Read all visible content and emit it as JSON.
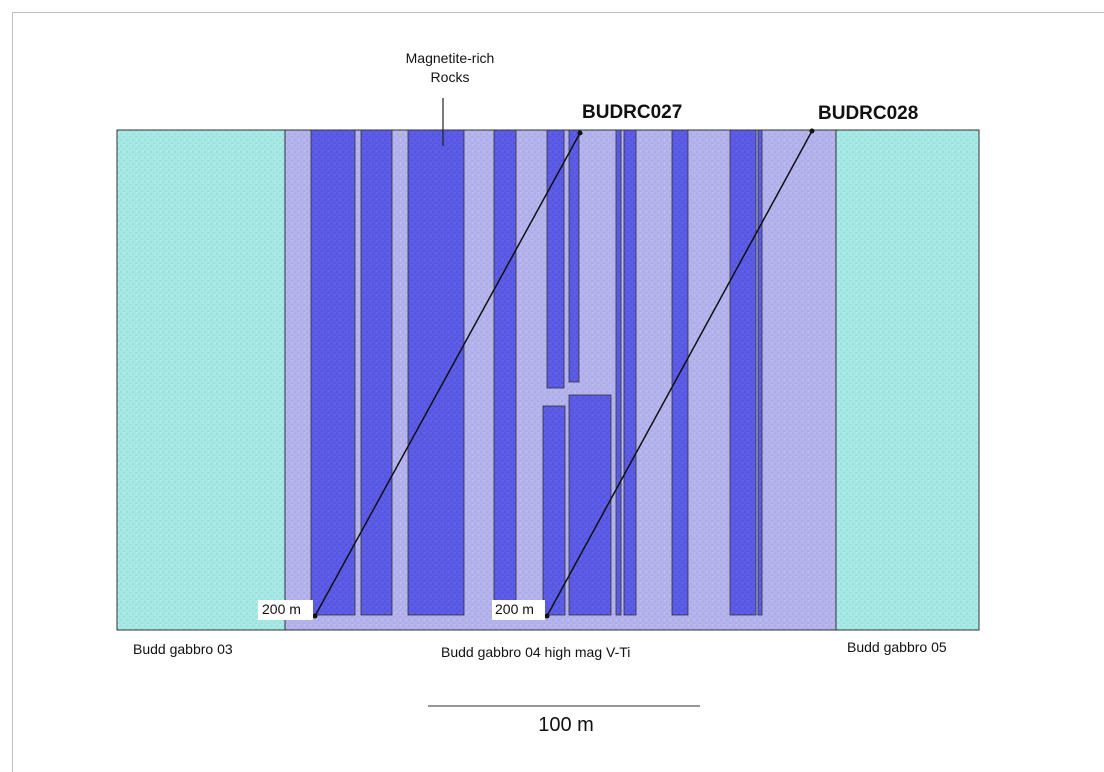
{
  "annotation": {
    "line1": "Magnetite-rich",
    "line2": "Rocks"
  },
  "drillholes": [
    {
      "name": "BUDRC027",
      "depth_label": "200 m"
    },
    {
      "name": "BUDRC028",
      "depth_label": "200 m"
    }
  ],
  "units": [
    {
      "label": "Budd gabbro 03"
    },
    {
      "label": "Budd gabbro 04 high mag V-Ti"
    },
    {
      "label": "Budd gabbro 05"
    }
  ],
  "scale_bar": {
    "label": "100 m"
  },
  "colors": {
    "gabbro_03_05": "#a6e8e4",
    "gabbro_04": "#b5b3ec",
    "magnetite": "#5b5be6",
    "outline": "#333333"
  }
}
